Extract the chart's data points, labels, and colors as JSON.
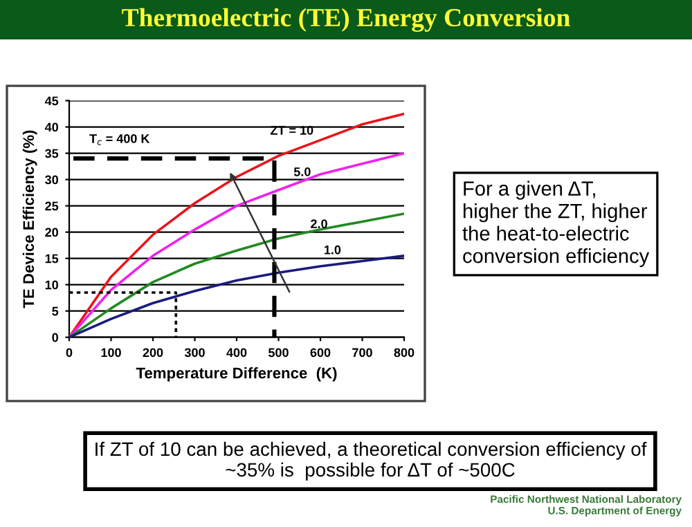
{
  "chart_data": {
    "type": "line",
    "title": "Thermoelectric (TE) Energy Conversion",
    "xlabel": "Temperature Difference  (K)",
    "ylabel": "TE Device Efficiency (%)",
    "x": [
      0,
      100,
      200,
      300,
      400,
      500,
      600,
      700,
      800
    ],
    "series": [
      {
        "color": "#e8141b",
        "values": [
          0,
          11.5,
          19.5,
          25.5,
          30.5,
          34.5,
          37.5,
          40.5,
          42.5
        ]
      },
      {
        "color": "#ee22ee",
        "values": [
          0,
          9,
          15.5,
          20.5,
          25,
          28,
          31,
          33,
          35
        ]
      },
      {
        "color": "#218a21",
        "values": [
          0,
          5.5,
          10.5,
          14,
          16.5,
          18.8,
          20.5,
          22,
          23.5
        ]
      },
      {
        "color": "#1a1a80",
        "values": [
          0,
          3.5,
          6.5,
          8.8,
          10.8,
          12.3,
          13.5,
          14.5,
          15.5
        ]
      },
      {
        "color": "#000000",
        "line_style": "dashed",
        "x": [
          10,
          490,
          490
        ],
        "values": [
          34,
          34,
          0
        ]
      },
      {
        "color": "#000000",
        "line_style": "dotted",
        "x": [
          0,
          255,
          255
        ],
        "values": [
          8.5,
          8.5,
          0
        ]
      }
    ],
    "xlim": [
      0,
      800
    ],
    "xticks": [
      0,
      100,
      200,
      300,
      400,
      500,
      600,
      700,
      800
    ],
    "ylim": [
      0,
      45
    ],
    "yticks": [
      0,
      5,
      10,
      15,
      20,
      25,
      30,
      35,
      40,
      45
    ],
    "grid": "y",
    "legend": false,
    "marker": "none",
    "annotations": [
      "ZT = 10",
      "5.0",
      "2.0",
      "1.0",
      "T$_{c}$ = 400 K",
      "For a given ΔT,\nhigher the ZT, higher\nthe heat-to-electric\nconversion efficiency",
      "If ZT of 10 can be achieved, a theoretical conversion efficiency of\n~35% is  possible for ΔT of ~500C",
      "Pacific Northwest National Laboratory\nU.S. Department of Energy"
    ]
  }
}
